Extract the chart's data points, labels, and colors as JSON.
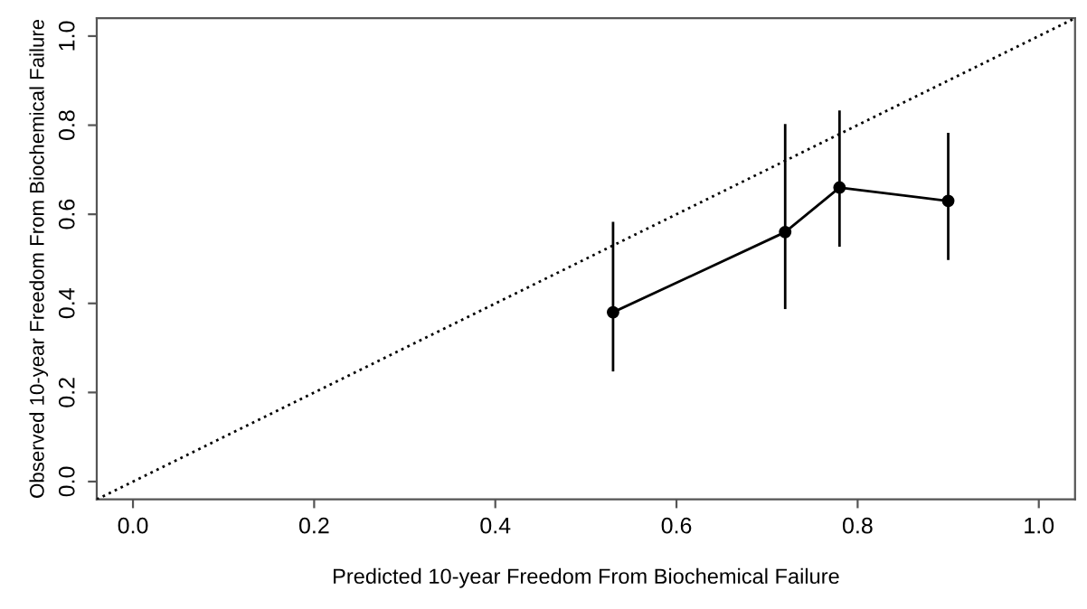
{
  "chart_data": {
    "type": "line",
    "xlabel": "Predicted 10-year Freedom From Biochemical Failure",
    "ylabel": "Observed 10-year Freedom From Biochemical Failure",
    "xlim": [
      -0.04,
      1.04
    ],
    "ylim": [
      -0.04,
      1.04
    ],
    "xticks": [
      {
        "value": 0,
        "label": "0.0"
      },
      0.2,
      0.4,
      0.6,
      0.8,
      {
        "value": 1,
        "label": "1.0"
      }
    ],
    "yticks": [
      {
        "value": 0,
        "label": "0.0"
      },
      0.2,
      0.4,
      0.6,
      0.8,
      {
        "value": 1,
        "label": "1.0"
      }
    ],
    "grid": false,
    "legend": false,
    "series": [
      {
        "x": [
          -0.04,
          1.04
        ],
        "values": [
          -0.04,
          1.04
        ],
        "color": "#000000",
        "line_style": "dotted",
        "marker": "none"
      },
      {
        "x": [
          0.53,
          0.72,
          0.78,
          0.9
        ],
        "values": [
          0.38,
          0.56,
          0.66,
          0.63
        ],
        "color": "#000000",
        "line_style": "solid",
        "marker": "circle",
        "errors": [
          [
            0.25,
            0.58
          ],
          [
            0.39,
            0.8
          ],
          [
            0.53,
            0.83
          ],
          [
            0.5,
            0.78
          ]
        ]
      }
    ]
  }
}
